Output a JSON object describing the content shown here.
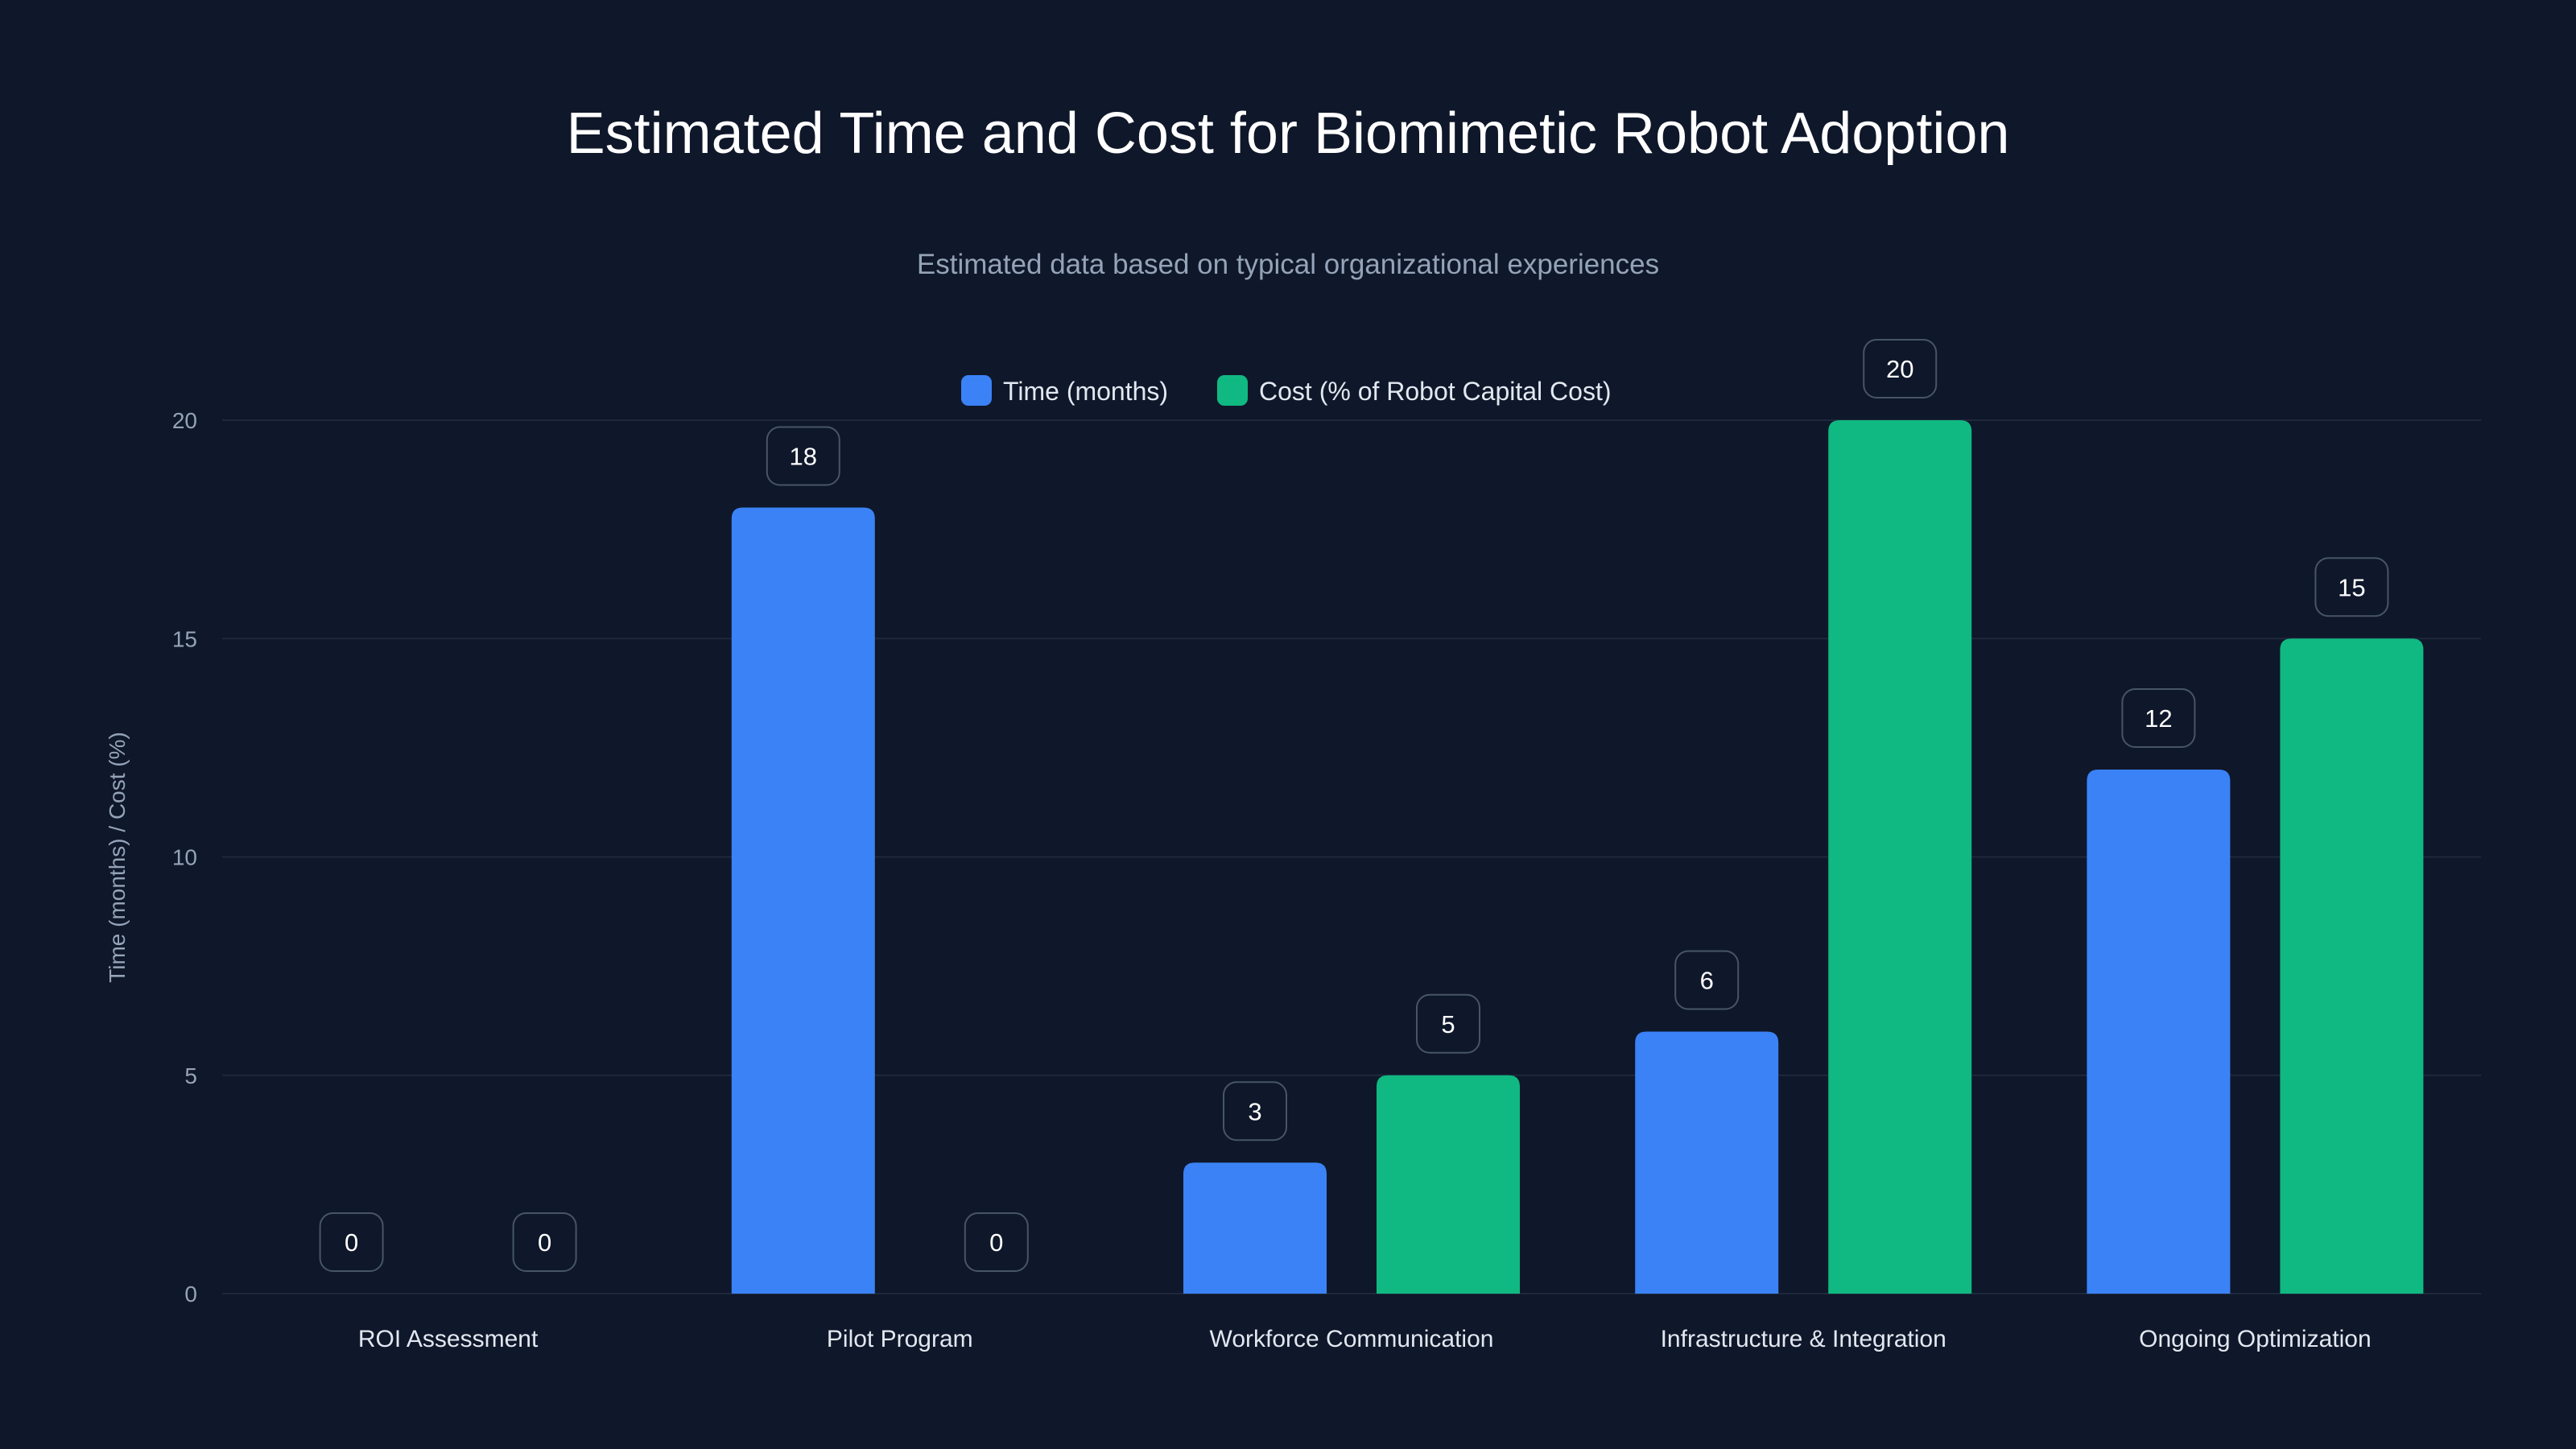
{
  "chart_data": {
    "type": "bar",
    "title": "Estimated Time and Cost for Biomimetic Robot Adoption",
    "subtitle": "Estimated data based on typical organizational experiences",
    "xlabel": "",
    "ylabel": "Time (months) / Cost (%)",
    "ylim": [
      0,
      20
    ],
    "yticks": [
      0,
      5,
      10,
      15,
      20
    ],
    "grid": true,
    "legend_placement": "top-center",
    "categories": [
      "ROI Assessment",
      "Pilot Program",
      "Workforce Communication",
      "Infrastructure & Integration",
      "Ongoing Optimization"
    ],
    "series": [
      {
        "name": "Time (months)",
        "color": "#3b82f6",
        "values": [
          0,
          18,
          3,
          6,
          12
        ]
      },
      {
        "name": "Cost (% of Robot Capital Cost)",
        "color": "#10b981",
        "values": [
          0,
          0,
          5,
          20,
          15
        ]
      }
    ]
  },
  "colors": {
    "background": "#0f172a",
    "grid": "#1e293b",
    "label_box_fill": "#0f172a",
    "label_box_stroke": "#475569"
  }
}
